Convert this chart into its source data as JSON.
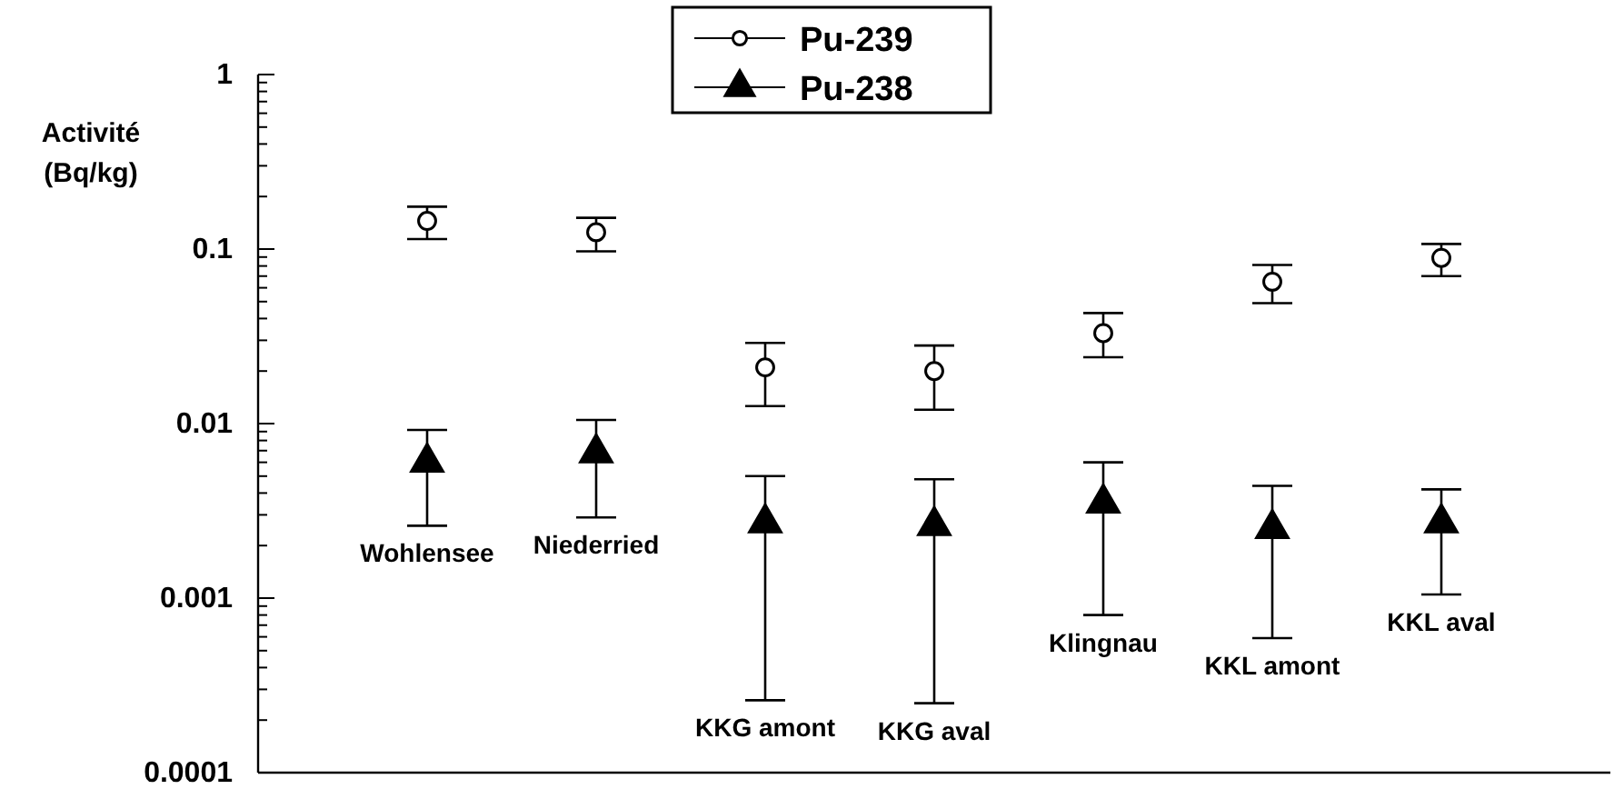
{
  "chart_data": {
    "type": "scatter",
    "ylabel": "Activité\n(Bq/kg)",
    "log": "y",
    "legend": "top",
    "grid": false,
    "categories": [
      "Wohlensee",
      "Niederried",
      "KKG amont",
      "KKG aval",
      "Klingnau",
      "KKL amont",
      "KKL aval"
    ],
    "ylim": [
      0.0001,
      1
    ],
    "yticks": [
      0.0001,
      {
        "value": 0.0002,
        "label": null
      },
      {
        "value": 0.0003,
        "label": null
      },
      {
        "value": 0.0004,
        "label": null
      },
      {
        "value": 0.0005,
        "label": null
      },
      {
        "value": 0.0006,
        "label": null
      },
      {
        "value": 0.0007,
        "label": null
      },
      {
        "value": 0.0008,
        "label": null
      },
      {
        "value": 0.0009,
        "label": null
      },
      0.001,
      {
        "value": 0.002,
        "label": null
      },
      {
        "value": 0.003,
        "label": null
      },
      {
        "value": 0.004,
        "label": null
      },
      {
        "value": 0.005,
        "label": null
      },
      {
        "value": 0.006,
        "label": null
      },
      {
        "value": 0.007,
        "label": null
      },
      {
        "value": 0.008,
        "label": null
      },
      {
        "value": 0.009,
        "label": null
      },
      0.01,
      {
        "value": 0.02,
        "label": null
      },
      {
        "value": 0.03,
        "label": null
      },
      {
        "value": 0.04,
        "label": null
      },
      {
        "value": 0.05,
        "label": null
      },
      {
        "value": 0.06,
        "label": null
      },
      {
        "value": 0.07,
        "label": null
      },
      {
        "value": 0.08,
        "label": null
      },
      {
        "value": 0.09,
        "label": null
      },
      0.1,
      {
        "value": 0.2,
        "label": null
      },
      {
        "value": 0.3,
        "label": null
      },
      {
        "value": 0.4,
        "label": null
      },
      {
        "value": 0.5,
        "label": null
      },
      {
        "value": 0.6,
        "label": null
      },
      {
        "value": 0.7,
        "label": null
      },
      {
        "value": 0.8,
        "label": null
      },
      {
        "value": 0.9,
        "label": null
      },
      1
    ],
    "series": [
      {
        "name": "Pu-239",
        "color": "#000000",
        "marker": "circle",
        "values": [
          0.145,
          0.125,
          0.021,
          0.02,
          0.033,
          0.065,
          0.089
        ],
        "errors": [
          [
            0.114,
            0.175
          ],
          [
            0.097,
            0.151
          ],
          [
            0.0126,
            0.029
          ],
          [
            0.012,
            0.028
          ],
          [
            0.024,
            0.043
          ],
          [
            0.049,
            0.081
          ],
          [
            0.07,
            0.107
          ]
        ]
      },
      {
        "name": "Pu-238",
        "color": "#000000",
        "marker": "triangle",
        "values": [
          0.006,
          0.0068,
          0.0027,
          0.0026,
          0.0035,
          0.0025,
          0.0027
        ],
        "errors": [
          [
            0.0026,
            0.0092
          ],
          [
            0.0029,
            0.0105
          ],
          [
            0.00026,
            0.005
          ],
          [
            0.00025,
            0.0048
          ],
          [
            0.0008,
            0.006
          ],
          [
            0.00059,
            0.0044
          ],
          [
            0.00105,
            0.0042
          ]
        ]
      }
    ]
  }
}
